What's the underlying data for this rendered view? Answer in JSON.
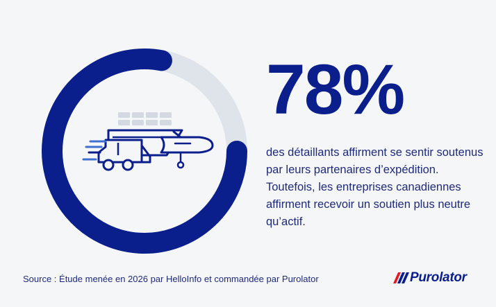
{
  "chart_data": {
    "type": "donut",
    "value": 78,
    "max": 100,
    "label": "78%",
    "colors": {
      "filled": "#0a1e8c",
      "remainder": "#dfe3ea"
    }
  },
  "description": "des détaillants affirment se sentir soutenus par leurs partenaires d’expédition. Toutefois, les entreprises canadiennes affirment recevoir un soutien plus neutre qu’actif.",
  "source": "Source : Étude menée en 2026 par HelloInfo et commandée par Purolator",
  "brand": {
    "name": "Purolator",
    "colors": {
      "primary": "#0a1e8c",
      "accent": "#e31b23",
      "light": "#3e6fd0"
    }
  },
  "icons": [
    "shipping-icon"
  ],
  "theme": {
    "background": "#f5f6f8",
    "text": "#1f2a7a"
  }
}
